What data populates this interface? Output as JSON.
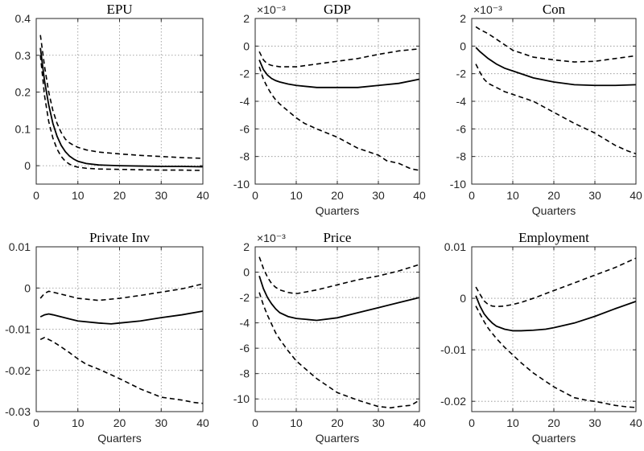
{
  "chart_data": [
    {
      "type": "line",
      "title": "EPU",
      "xlabel": "",
      "xlim": [
        0,
        40
      ],
      "ylim": [
        -0.05,
        0.4
      ],
      "xticks": [
        0,
        10,
        20,
        30,
        40
      ],
      "yticks": [
        0,
        0.1,
        0.2,
        0.3,
        0.4
      ],
      "ytick_labels": [
        "0",
        "0.1",
        "0.2",
        "0.3",
        "0.4"
      ],
      "multiplier": "",
      "grid": true,
      "series": [
        {
          "role": "upper",
          "style": "dashed",
          "x": [
            1,
            2,
            3,
            4,
            5,
            6,
            7,
            8,
            9,
            10,
            12,
            15,
            20,
            25,
            30,
            35,
            40
          ],
          "y": [
            0.355,
            0.27,
            0.2,
            0.15,
            0.115,
            0.09,
            0.072,
            0.062,
            0.055,
            0.05,
            0.043,
            0.037,
            0.032,
            0.028,
            0.025,
            0.022,
            0.02
          ]
        },
        {
          "role": "median",
          "style": "solid",
          "x": [
            1,
            2,
            3,
            4,
            5,
            6,
            7,
            8,
            9,
            10,
            12,
            15,
            20,
            25,
            30,
            35,
            40
          ],
          "y": [
            0.32,
            0.23,
            0.165,
            0.115,
            0.08,
            0.055,
            0.038,
            0.026,
            0.018,
            0.012,
            0.006,
            0.002,
            0.0,
            -0.001,
            -0.002,
            -0.002,
            -0.003
          ]
        },
        {
          "role": "lower",
          "style": "dashed",
          "x": [
            1,
            2,
            3,
            4,
            5,
            6,
            7,
            8,
            9,
            10,
            12,
            15,
            20,
            25,
            30,
            35,
            40
          ],
          "y": [
            0.3,
            0.19,
            0.12,
            0.075,
            0.045,
            0.025,
            0.012,
            0.004,
            -0.001,
            -0.004,
            -0.007,
            -0.009,
            -0.01,
            -0.011,
            -0.012,
            -0.012,
            -0.013
          ]
        }
      ]
    },
    {
      "type": "line",
      "title": "GDP",
      "xlabel": "Quarters",
      "xlim": [
        0,
        40
      ],
      "ylim": [
        -10,
        2
      ],
      "xticks": [
        0,
        10,
        20,
        30,
        40
      ],
      "yticks": [
        -10,
        -8,
        -6,
        -4,
        -2,
        0,
        2
      ],
      "ytick_labels": [
        "-10",
        "-8",
        "-6",
        "-4",
        "-2",
        "0",
        "2"
      ],
      "multiplier": "×10⁻³",
      "grid": true,
      "series": [
        {
          "role": "upper",
          "style": "dashed",
          "x": [
            1,
            2,
            3,
            4,
            5,
            6,
            8,
            10,
            15,
            20,
            25,
            30,
            35,
            40
          ],
          "y": [
            -0.4,
            -1.0,
            -1.3,
            -1.4,
            -1.45,
            -1.5,
            -1.5,
            -1.5,
            -1.3,
            -1.1,
            -0.9,
            -0.6,
            -0.35,
            -0.2
          ]
        },
        {
          "role": "median",
          "style": "solid",
          "x": [
            1,
            2,
            3,
            4,
            5,
            6,
            8,
            10,
            15,
            20,
            25,
            30,
            35,
            40
          ],
          "y": [
            -1.0,
            -1.7,
            -2.1,
            -2.35,
            -2.5,
            -2.6,
            -2.75,
            -2.85,
            -3.0,
            -3.0,
            -3.0,
            -2.85,
            -2.7,
            -2.4
          ]
        },
        {
          "role": "lower",
          "style": "dashed",
          "x": [
            1,
            2,
            3,
            4,
            5,
            6,
            8,
            10,
            12,
            15,
            20,
            25,
            30,
            32,
            35,
            38,
            40
          ],
          "y": [
            -1.5,
            -2.4,
            -3.0,
            -3.5,
            -3.9,
            -4.2,
            -4.7,
            -5.2,
            -5.6,
            -6.0,
            -6.6,
            -7.4,
            -7.9,
            -8.3,
            -8.5,
            -8.9,
            -9.0
          ]
        }
      ]
    },
    {
      "type": "line",
      "title": "Con",
      "xlabel": "Quarters",
      "xlim": [
        0,
        40
      ],
      "ylim": [
        -10,
        2
      ],
      "xticks": [
        0,
        10,
        20,
        30,
        40
      ],
      "yticks": [
        -10,
        -8,
        -6,
        -4,
        -2,
        0,
        2
      ],
      "ytick_labels": [
        "-10",
        "-8",
        "-6",
        "-4",
        "-2",
        "0",
        "2"
      ],
      "multiplier": "×10⁻³",
      "grid": true,
      "series": [
        {
          "role": "upper",
          "style": "dashed",
          "x": [
            1,
            2,
            4,
            6,
            8,
            10,
            15,
            20,
            25,
            30,
            35,
            40
          ],
          "y": [
            1.4,
            1.2,
            0.9,
            0.5,
            0.1,
            -0.3,
            -0.8,
            -1.0,
            -1.15,
            -1.1,
            -0.9,
            -0.7
          ]
        },
        {
          "role": "median",
          "style": "solid",
          "x": [
            1,
            2,
            4,
            6,
            8,
            10,
            15,
            20,
            25,
            30,
            35,
            40
          ],
          "y": [
            -0.1,
            -0.4,
            -0.9,
            -1.3,
            -1.6,
            -1.8,
            -2.3,
            -2.6,
            -2.8,
            -2.85,
            -2.85,
            -2.8
          ]
        },
        {
          "role": "lower",
          "style": "dashed",
          "x": [
            1,
            2,
            3,
            4,
            6,
            8,
            10,
            15,
            20,
            25,
            30,
            35,
            38,
            40
          ],
          "y": [
            -1.3,
            -1.9,
            -2.4,
            -2.7,
            -3.0,
            -3.3,
            -3.5,
            -4.0,
            -4.8,
            -5.6,
            -6.3,
            -7.2,
            -7.6,
            -7.8
          ]
        }
      ]
    },
    {
      "type": "line",
      "title": "Private Inv",
      "xlabel": "Quarters",
      "xlim": [
        0,
        40
      ],
      "ylim": [
        -0.03,
        0.01
      ],
      "xticks": [
        0,
        10,
        20,
        30,
        40
      ],
      "yticks": [
        -0.03,
        -0.02,
        -0.01,
        0,
        0.01
      ],
      "ytick_labels": [
        "-0.03",
        "-0.02",
        "-0.01",
        "0",
        "0.01"
      ],
      "multiplier": "",
      "grid": true,
      "series": [
        {
          "role": "upper",
          "style": "dashed",
          "x": [
            1,
            2,
            3,
            4,
            6,
            8,
            10,
            15,
            20,
            25,
            30,
            35,
            40
          ],
          "y": [
            -0.0025,
            -0.0013,
            -0.0008,
            -0.001,
            -0.0015,
            -0.002,
            -0.0025,
            -0.003,
            -0.0025,
            -0.0018,
            -0.001,
            -0.0002,
            0.001
          ]
        },
        {
          "role": "median",
          "style": "solid",
          "x": [
            1,
            2,
            3,
            4,
            6,
            8,
            10,
            15,
            18,
            20,
            25,
            30,
            35,
            40
          ],
          "y": [
            -0.007,
            -0.0065,
            -0.0063,
            -0.0065,
            -0.007,
            -0.0075,
            -0.008,
            -0.0085,
            -0.0087,
            -0.0085,
            -0.008,
            -0.0072,
            -0.0065,
            -0.0056
          ]
        },
        {
          "role": "lower",
          "style": "dashed",
          "x": [
            1,
            2,
            4,
            6,
            8,
            10,
            12,
            15,
            20,
            25,
            30,
            35,
            38,
            40
          ],
          "y": [
            -0.0125,
            -0.012,
            -0.013,
            -0.0143,
            -0.0157,
            -0.0172,
            -0.0185,
            -0.0197,
            -0.022,
            -0.0245,
            -0.0265,
            -0.0272,
            -0.0278,
            -0.028
          ]
        }
      ]
    },
    {
      "type": "line",
      "title": "Price",
      "xlabel": "Quarters",
      "xlim": [
        0,
        40
      ],
      "ylim": [
        -11,
        2
      ],
      "xticks": [
        0,
        10,
        20,
        30,
        40
      ],
      "yticks": [
        -10,
        -8,
        -6,
        -4,
        -2,
        0,
        2
      ],
      "ytick_labels": [
        "-10",
        "-8",
        "-6",
        "-4",
        "-2",
        "0",
        "2"
      ],
      "multiplier": "×10⁻³",
      "grid": true,
      "series": [
        {
          "role": "upper",
          "style": "dashed",
          "x": [
            1,
            2,
            3,
            4,
            5,
            6,
            8,
            10,
            15,
            20,
            25,
            30,
            35,
            40
          ],
          "y": [
            1.2,
            0.3,
            -0.4,
            -0.9,
            -1.2,
            -1.4,
            -1.6,
            -1.7,
            -1.4,
            -1.0,
            -0.6,
            -0.3,
            0.1,
            0.6
          ]
        },
        {
          "role": "median",
          "style": "solid",
          "x": [
            1,
            2,
            3,
            4,
            5,
            6,
            8,
            10,
            15,
            20,
            25,
            30,
            35,
            40
          ],
          "y": [
            -0.3,
            -1.3,
            -2.0,
            -2.5,
            -2.9,
            -3.2,
            -3.5,
            -3.65,
            -3.8,
            -3.6,
            -3.2,
            -2.8,
            -2.4,
            -2.0
          ]
        },
        {
          "role": "lower",
          "style": "dashed",
          "x": [
            1,
            2,
            3,
            4,
            5,
            6,
            8,
            10,
            15,
            20,
            25,
            30,
            33,
            35,
            38,
            40
          ],
          "y": [
            -1.6,
            -2.6,
            -3.4,
            -4.1,
            -4.8,
            -5.3,
            -6.2,
            -7.0,
            -8.4,
            -9.5,
            -10.1,
            -10.6,
            -10.7,
            -10.6,
            -10.5,
            -10.1
          ]
        }
      ]
    },
    {
      "type": "line",
      "title": "Employment",
      "xlabel": "Quarters",
      "xlim": [
        0,
        40
      ],
      "ylim": [
        -0.022,
        0.01
      ],
      "xticks": [
        0,
        10,
        20,
        30,
        40
      ],
      "yticks": [
        -0.02,
        -0.01,
        0,
        0.01
      ],
      "ytick_labels": [
        "-0.02",
        "-0.01",
        "0",
        "0.01"
      ],
      "multiplier": "",
      "grid": true,
      "series": [
        {
          "role": "upper",
          "style": "dashed",
          "x": [
            1,
            2,
            3,
            4,
            5,
            6,
            8,
            10,
            12,
            15,
            20,
            25,
            30,
            35,
            40
          ],
          "y": [
            0.0022,
            0.0008,
            -0.0005,
            -0.0012,
            -0.0015,
            -0.0016,
            -0.0015,
            -0.0012,
            -0.0008,
            0.0,
            0.0015,
            0.003,
            0.0045,
            0.006,
            0.0078
          ]
        },
        {
          "role": "median",
          "style": "solid",
          "x": [
            1,
            2,
            3,
            4,
            5,
            6,
            8,
            10,
            12,
            15,
            18,
            20,
            25,
            30,
            35,
            40
          ],
          "y": [
            0.0005,
            -0.0015,
            -0.003,
            -0.004,
            -0.0048,
            -0.0054,
            -0.006,
            -0.0063,
            -0.0063,
            -0.0062,
            -0.006,
            -0.0057,
            -0.0048,
            -0.0035,
            -0.002,
            -0.0006
          ]
        },
        {
          "role": "lower",
          "style": "dashed",
          "x": [
            1,
            2,
            3,
            4,
            5,
            6,
            8,
            10,
            12,
            15,
            20,
            25,
            28,
            30,
            35,
            38,
            40
          ],
          "y": [
            -0.0015,
            -0.003,
            -0.0045,
            -0.0058,
            -0.0068,
            -0.0078,
            -0.0095,
            -0.011,
            -0.0125,
            -0.0145,
            -0.0172,
            -0.0193,
            -0.0198,
            -0.02,
            -0.0208,
            -0.0211,
            -0.0212
          ]
        }
      ]
    }
  ]
}
